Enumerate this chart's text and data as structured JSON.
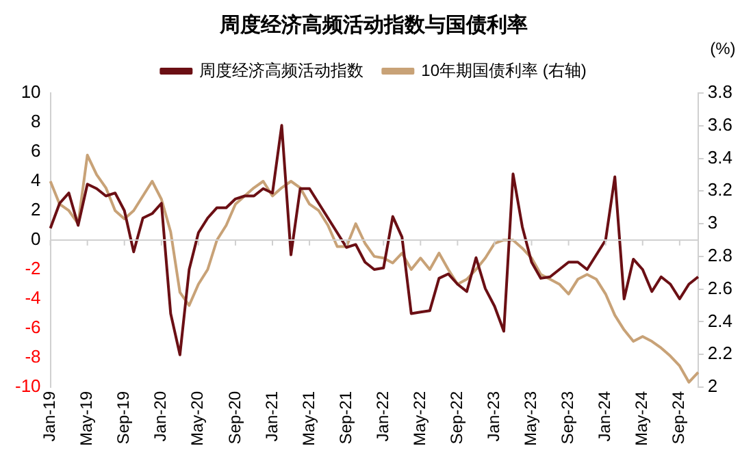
{
  "chart_data": {
    "type": "line",
    "title": "周度经济高频活动指数与国债利率",
    "y2label": "(%)",
    "categories": [
      "Jan-19",
      null,
      null,
      null,
      "May-19",
      null,
      null,
      null,
      "Sep-19",
      null,
      null,
      null,
      "Jan-20",
      null,
      null,
      null,
      "May-20",
      null,
      null,
      null,
      "Sep-20",
      null,
      null,
      null,
      "Jan-21",
      null,
      null,
      null,
      "May-21",
      null,
      null,
      null,
      "Sep-21",
      null,
      null,
      null,
      "Jan-22",
      null,
      null,
      null,
      "May-22",
      null,
      null,
      null,
      "Sep-22",
      null,
      null,
      null,
      "Jan-23",
      null,
      null,
      null,
      "May-23",
      null,
      null,
      null,
      "Sep-23",
      null,
      null,
      null,
      "Jan-24",
      null,
      null,
      null,
      "May-24",
      null,
      null,
      null,
      "Sep-24",
      null,
      null
    ],
    "series": [
      {
        "name": "周度经济高频活动指数",
        "color": "#6b0f14",
        "values": [
          0.8,
          2.5,
          3.2,
          1.0,
          3.8,
          3.5,
          3.0,
          3.2,
          2.0,
          -0.8,
          1.5,
          1.8,
          2.5,
          -5.0,
          -7.8,
          -2.0,
          0.5,
          1.5,
          2.2,
          2.2,
          2.8,
          3.0,
          3.0,
          3.5,
          3.2,
          7.8,
          -1.0,
          3.5,
          3.5,
          2.5,
          1.5,
          0.5,
          -0.5,
          -0.3,
          -1.5,
          -2.0,
          -1.9,
          1.6,
          0.2,
          -5.0,
          -4.9,
          -4.8,
          -2.6,
          -2.3,
          -3.0,
          -3.5,
          -1.2,
          -3.3,
          -4.5,
          -6.2,
          4.5,
          0.9,
          -1.5,
          -2.6,
          -2.5,
          -2.0,
          -1.5,
          -1.5,
          -2.0,
          -1.0,
          0.0,
          4.3,
          -4.0,
          -1.3,
          -2.0,
          -3.5,
          -2.5,
          -3.0,
          -4.0,
          -3.0,
          -2.5
        ]
      },
      {
        "name": "10年期国债利率 (右轴)",
        "color": "#c8a277",
        "axis": "y2",
        "values": [
          3.26,
          3.12,
          3.08,
          3.0,
          3.42,
          3.3,
          3.22,
          3.08,
          3.03,
          3.08,
          3.17,
          3.26,
          3.15,
          2.95,
          2.58,
          2.5,
          2.63,
          2.72,
          2.9,
          2.99,
          3.12,
          3.17,
          3.22,
          3.26,
          3.17,
          3.22,
          3.26,
          3.22,
          3.12,
          3.08,
          2.99,
          2.86,
          2.86,
          3.0,
          2.88,
          2.8,
          2.79,
          2.76,
          2.82,
          2.72,
          2.79,
          2.72,
          2.82,
          2.72,
          2.63,
          2.66,
          2.72,
          2.79,
          2.88,
          2.9,
          2.9,
          2.85,
          2.79,
          2.69,
          2.66,
          2.63,
          2.57,
          2.66,
          2.69,
          2.66,
          2.57,
          2.44,
          2.35,
          2.28,
          2.31,
          2.28,
          2.24,
          2.19,
          2.13,
          2.03,
          2.09
        ]
      }
    ],
    "ylim": [
      -10,
      10
    ],
    "yticks": [
      -10,
      -8,
      -6,
      -4,
      -2,
      0,
      2,
      4,
      6,
      8,
      10
    ],
    "y2lim": [
      2,
      3.8
    ],
    "y2ticks": [
      2,
      2.2,
      2.4,
      2.6,
      2.8,
      3,
      3.2,
      3.4,
      3.6,
      3.8
    ],
    "legend": "top"
  }
}
